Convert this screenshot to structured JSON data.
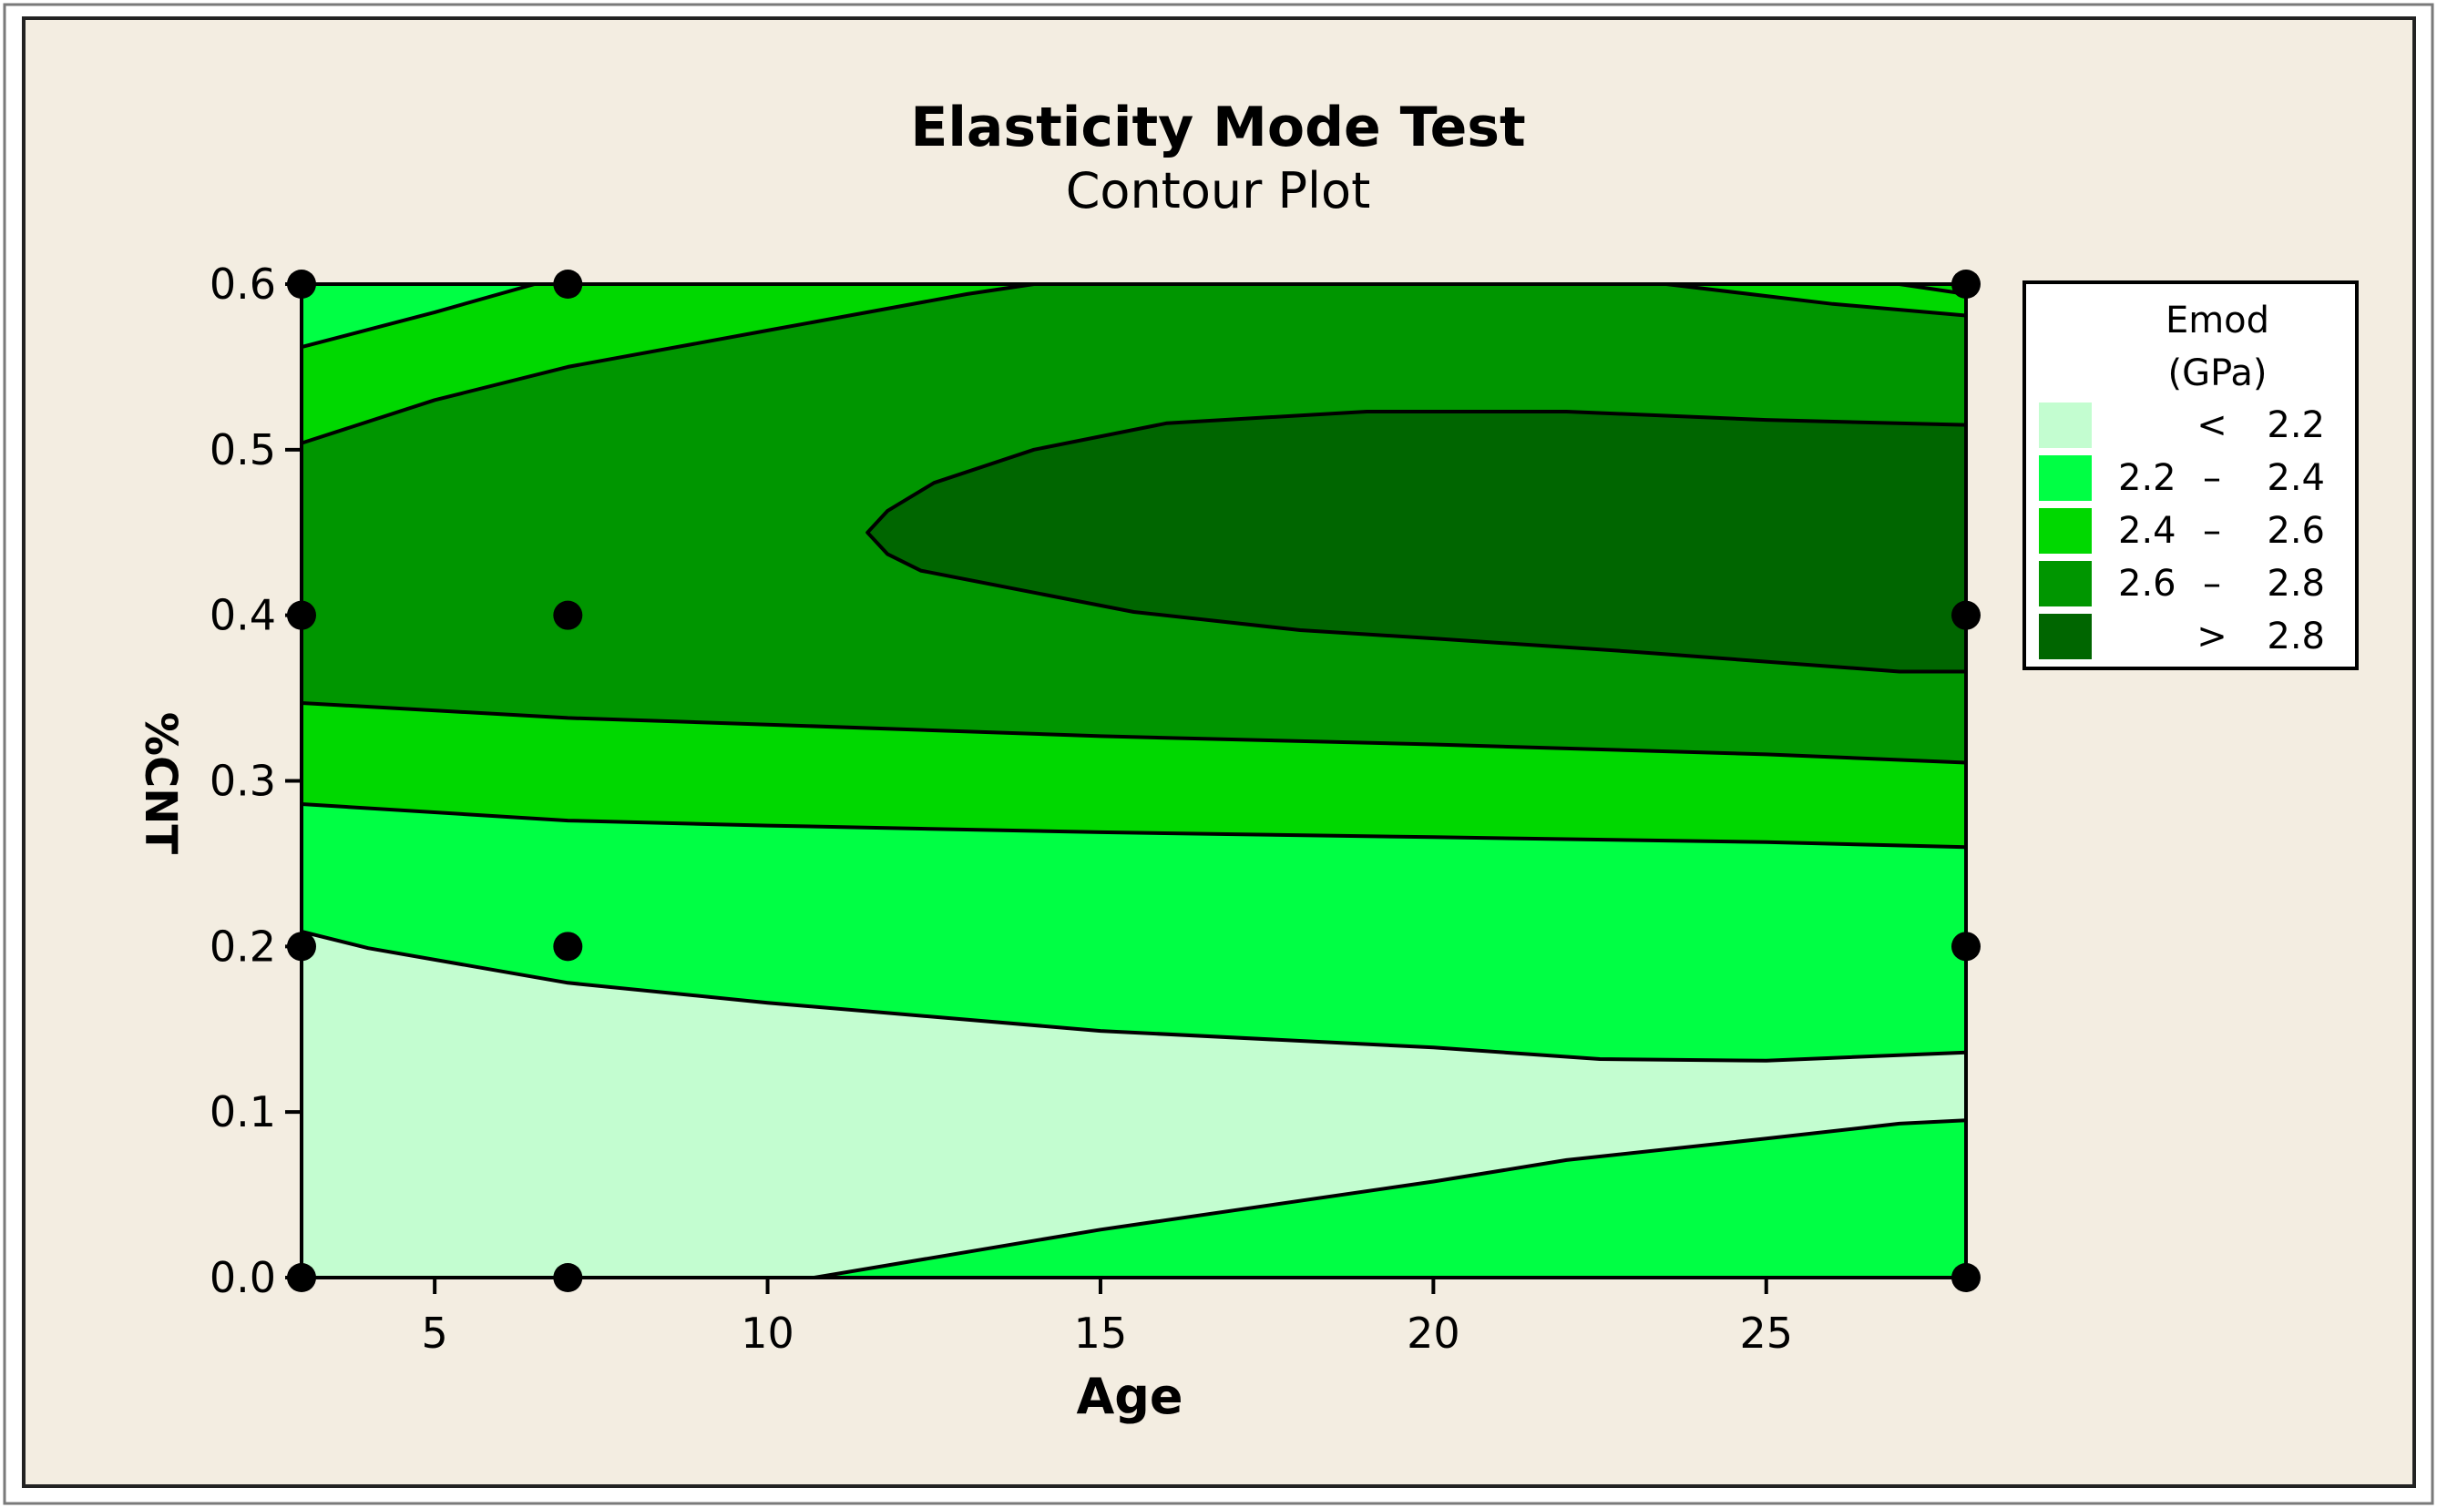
{
  "chart_data": {
    "type": "contour",
    "title": "Elasticity Mode Test",
    "subtitle": "Contour Plot",
    "xlabel": "Age",
    "ylabel": "%CNT",
    "xlim": [
      3,
      28
    ],
    "ylim": [
      0.0,
      0.6
    ],
    "x_ticks": [
      5,
      10,
      15,
      20,
      25
    ],
    "x_tick_labels": [
      "5",
      "10",
      "15",
      "20",
      "25"
    ],
    "y_ticks": [
      0.0,
      0.1,
      0.2,
      0.3,
      0.4,
      0.5,
      0.6
    ],
    "y_tick_labels": [
      "0.0",
      "0.1",
      "0.2",
      "0.3",
      "0.4",
      "0.5",
      "0.6"
    ],
    "legend": {
      "title_line1": "Emod",
      "title_line2": "(GPa)",
      "placement": "right",
      "entries": [
        {
          "lo": "",
          "sep": "<",
          "hi": "2.2",
          "color": "#c3fdd0"
        },
        {
          "lo": "2.2",
          "sep": "–",
          "hi": "2.4",
          "color": "#00ff44"
        },
        {
          "lo": "2.4",
          "sep": "–",
          "hi": "2.6",
          "color": "#00d800"
        },
        {
          "lo": "2.6",
          "sep": "–",
          "hi": "2.8",
          "color": "#009600"
        },
        {
          "lo": "",
          "sep": ">",
          "hi": "2.8",
          "color": "#006600"
        }
      ]
    },
    "design_points": [
      {
        "x": 3,
        "y": 0.0
      },
      {
        "x": 3,
        "y": 0.2
      },
      {
        "x": 3,
        "y": 0.4
      },
      {
        "x": 3,
        "y": 0.6
      },
      {
        "x": 7,
        "y": 0.0
      },
      {
        "x": 7,
        "y": 0.2
      },
      {
        "x": 7,
        "y": 0.4
      },
      {
        "x": 7,
        "y": 0.6
      },
      {
        "x": 28,
        "y": 0.0
      },
      {
        "x": 28,
        "y": 0.2
      },
      {
        "x": 28,
        "y": 0.4
      },
      {
        "x": 28,
        "y": 0.6
      }
    ],
    "contours": [
      {
        "level": 2.2,
        "lines": [
          [
            [
              3,
              0.209
            ],
            [
              4,
              0.199
            ],
            [
              7,
              0.178
            ],
            [
              10,
              0.166
            ],
            [
              15,
              0.149
            ],
            [
              20,
              0.139
            ],
            [
              22.5,
              0.132
            ],
            [
              25,
              0.131
            ],
            [
              28,
              0.136
            ]
          ],
          [
            [
              10.7,
              0.0
            ],
            [
              15,
              0.029
            ],
            [
              20,
              0.058
            ],
            [
              22,
              0.071
            ],
            [
              25,
              0.084
            ],
            [
              27,
              0.093
            ],
            [
              28,
              0.095
            ]
          ]
        ]
      },
      {
        "level": 2.4,
        "lines": [
          [
            [
              3,
              0.286
            ],
            [
              7,
              0.276
            ],
            [
              10,
              0.273
            ],
            [
              15,
              0.269
            ],
            [
              20,
              0.266
            ],
            [
              25,
              0.263
            ],
            [
              28,
              0.26
            ]
          ]
        ]
      },
      {
        "level": 2.6,
        "lines": [
          [
            [
              3,
              0.347
            ],
            [
              7,
              0.338
            ],
            [
              10,
              0.334
            ],
            [
              15,
              0.327
            ],
            [
              20,
              0.322
            ],
            [
              25,
              0.316
            ],
            [
              28,
              0.311
            ]
          ],
          [
            [
              3,
              0.562
            ],
            [
              5,
              0.583
            ],
            [
              6.5,
              0.6
            ]
          ],
          [
            [
              27,
              0.6
            ],
            [
              28,
              0.594
            ]
          ]
        ]
      },
      {
        "level": 2.8,
        "lines": [
          [
            [
              3,
              0.504
            ],
            [
              5,
              0.53
            ],
            [
              7,
              0.55
            ],
            [
              10,
              0.572
            ],
            [
              13,
              0.594
            ],
            [
              14,
              0.6
            ],
            [
              23.5,
              0.6
            ],
            [
              26,
              0.588
            ],
            [
              28,
              0.581
            ]
          ],
          [
            [
              28,
              0.515
            ],
            [
              25,
              0.518
            ],
            [
              22,
              0.523
            ],
            [
              19,
              0.523
            ],
            [
              16,
              0.516
            ],
            [
              14,
              0.5
            ],
            [
              12.5,
              0.48
            ],
            [
              11.8,
              0.463
            ],
            [
              11.5,
              0.45
            ],
            [
              11.8,
              0.437
            ],
            [
              12.3,
              0.427
            ],
            [
              15.5,
              0.402
            ],
            [
              18,
              0.391
            ],
            [
              20,
              0.386
            ],
            [
              23,
              0.378
            ],
            [
              27,
              0.366
            ],
            [
              28,
              0.366
            ]
          ]
        ]
      }
    ]
  }
}
